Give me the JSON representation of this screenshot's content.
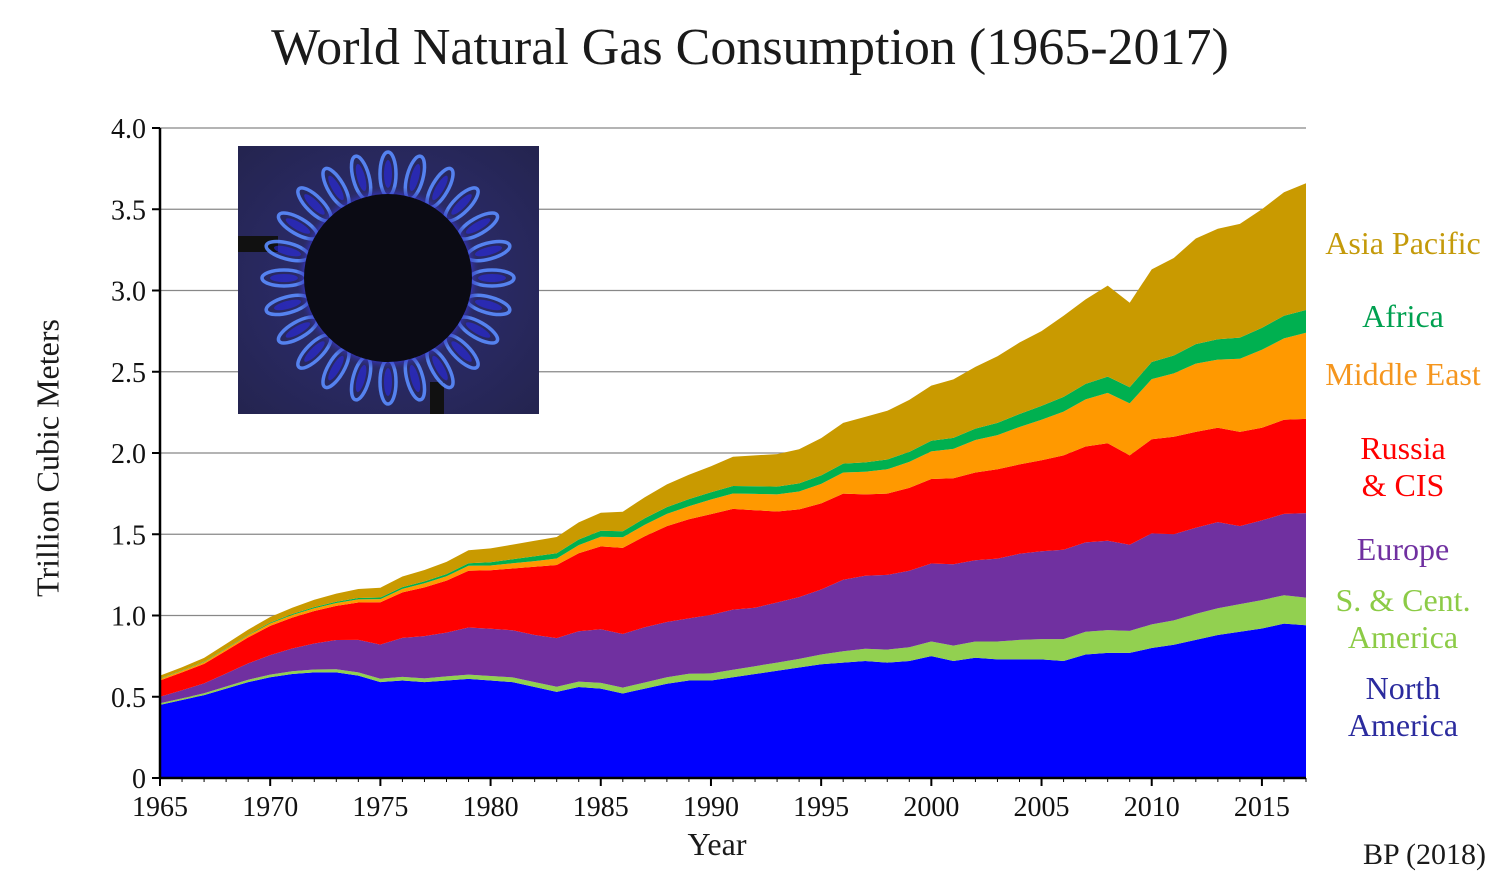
{
  "title": "World Natural Gas Consumption (1965-2017)",
  "source": "BP (2018)",
  "photo": {
    "icon": "gas-burner-flame-icon"
  },
  "chart_data": {
    "type": "area",
    "stacked": true,
    "title": "World Natural Gas Consumption (1965-2017)",
    "xlabel": "Year",
    "ylabel": "Trillion Cubic Meters",
    "xlim": [
      1965,
      2017
    ],
    "ylim": [
      0,
      4.0
    ],
    "grid": "horizontal",
    "x_ticks": [
      "1965",
      "1970",
      "1975",
      "1980",
      "1985",
      "1990",
      "1995",
      "2000",
      "2005",
      "2010",
      "2015"
    ],
    "y_ticks": [
      "0",
      "0.5",
      "1.0",
      "1.5",
      "2.0",
      "2.5",
      "3.0",
      "3.5",
      "4.0"
    ],
    "legend_position": "right, inline labels",
    "x": [
      1965,
      1966,
      1967,
      1968,
      1969,
      1970,
      1971,
      1972,
      1973,
      1974,
      1975,
      1976,
      1977,
      1978,
      1979,
      1980,
      1981,
      1982,
      1983,
      1984,
      1985,
      1986,
      1987,
      1988,
      1989,
      1990,
      1991,
      1992,
      1993,
      1994,
      1995,
      1996,
      1997,
      1998,
      1999,
      2000,
      2001,
      2002,
      2003,
      2004,
      2005,
      2006,
      2007,
      2008,
      2009,
      2010,
      2011,
      2012,
      2013,
      2014,
      2015,
      2016,
      2017
    ],
    "series": [
      {
        "name": "North America",
        "label_lines": [
          "North",
          "America"
        ],
        "color": "#0000ff",
        "label_color": "#2b2b9e",
        "values": [
          0.45,
          0.48,
          0.51,
          0.55,
          0.59,
          0.62,
          0.64,
          0.65,
          0.65,
          0.63,
          0.59,
          0.6,
          0.59,
          0.6,
          0.61,
          0.6,
          0.59,
          0.56,
          0.53,
          0.56,
          0.55,
          0.52,
          0.55,
          0.58,
          0.6,
          0.6,
          0.62,
          0.64,
          0.66,
          0.68,
          0.7,
          0.71,
          0.72,
          0.71,
          0.72,
          0.75,
          0.72,
          0.74,
          0.73,
          0.73,
          0.73,
          0.72,
          0.76,
          0.77,
          0.77,
          0.8,
          0.82,
          0.85,
          0.88,
          0.9,
          0.92,
          0.95,
          0.94
        ]
      },
      {
        "name": "S. & Cent. America",
        "label_lines": [
          "S. & Cent.",
          "America"
        ],
        "color": "#92d050",
        "label_color": "#8ccb46",
        "values": [
          0.01,
          0.01,
          0.012,
          0.013,
          0.015,
          0.016,
          0.017,
          0.018,
          0.019,
          0.02,
          0.021,
          0.022,
          0.023,
          0.025,
          0.026,
          0.028,
          0.029,
          0.03,
          0.031,
          0.033,
          0.035,
          0.036,
          0.038,
          0.04,
          0.042,
          0.044,
          0.046,
          0.048,
          0.05,
          0.053,
          0.06,
          0.07,
          0.075,
          0.08,
          0.085,
          0.09,
          0.095,
          0.1,
          0.11,
          0.12,
          0.125,
          0.135,
          0.14,
          0.14,
          0.135,
          0.145,
          0.15,
          0.16,
          0.165,
          0.17,
          0.175,
          0.175,
          0.17
        ]
      },
      {
        "name": "Europe",
        "label_lines": [
          "Europe"
        ],
        "color": "#7030a0",
        "label_color": "#7030a0",
        "values": [
          0.04,
          0.05,
          0.06,
          0.08,
          0.1,
          0.12,
          0.14,
          0.16,
          0.18,
          0.2,
          0.21,
          0.24,
          0.26,
          0.27,
          0.29,
          0.29,
          0.29,
          0.29,
          0.3,
          0.31,
          0.33,
          0.33,
          0.34,
          0.34,
          0.34,
          0.36,
          0.37,
          0.36,
          0.37,
          0.38,
          0.4,
          0.44,
          0.45,
          0.46,
          0.47,
          0.48,
          0.5,
          0.5,
          0.51,
          0.53,
          0.54,
          0.55,
          0.55,
          0.55,
          0.53,
          0.56,
          0.53,
          0.53,
          0.53,
          0.48,
          0.49,
          0.5,
          0.52
        ]
      },
      {
        "name": "Russia & CIS",
        "label_lines": [
          "Russia",
          "& CIS"
        ],
        "color": "#ff0000",
        "label_color": "#ff0000",
        "values": [
          0.1,
          0.11,
          0.12,
          0.14,
          0.16,
          0.18,
          0.19,
          0.2,
          0.21,
          0.23,
          0.26,
          0.28,
          0.3,
          0.32,
          0.35,
          0.36,
          0.38,
          0.42,
          0.45,
          0.48,
          0.51,
          0.53,
          0.56,
          0.59,
          0.61,
          0.62,
          0.62,
          0.6,
          0.56,
          0.54,
          0.53,
          0.53,
          0.5,
          0.5,
          0.51,
          0.52,
          0.53,
          0.54,
          0.55,
          0.55,
          0.56,
          0.58,
          0.59,
          0.6,
          0.55,
          0.58,
          0.6,
          0.59,
          0.58,
          0.58,
          0.57,
          0.58,
          0.58
        ]
      },
      {
        "name": "Middle East",
        "label_lines": [
          "Middle East"
        ],
        "color": "#ff9900",
        "label_color": "#f5961e",
        "values": [
          0.01,
          0.01,
          0.011,
          0.012,
          0.013,
          0.015,
          0.016,
          0.017,
          0.018,
          0.019,
          0.02,
          0.022,
          0.025,
          0.027,
          0.03,
          0.03,
          0.032,
          0.035,
          0.04,
          0.05,
          0.06,
          0.065,
          0.07,
          0.075,
          0.08,
          0.09,
          0.095,
          0.1,
          0.105,
          0.11,
          0.12,
          0.13,
          0.14,
          0.15,
          0.16,
          0.17,
          0.18,
          0.2,
          0.21,
          0.23,
          0.25,
          0.27,
          0.29,
          0.31,
          0.32,
          0.37,
          0.39,
          0.42,
          0.42,
          0.45,
          0.48,
          0.5,
          0.53
        ]
      },
      {
        "name": "Africa",
        "label_lines": [
          "Africa"
        ],
        "color": "#00b050",
        "label_color": "#00a050",
        "values": [
          0.002,
          0.002,
          0.003,
          0.003,
          0.004,
          0.005,
          0.006,
          0.007,
          0.008,
          0.009,
          0.01,
          0.011,
          0.012,
          0.013,
          0.015,
          0.02,
          0.025,
          0.03,
          0.032,
          0.035,
          0.037,
          0.038,
          0.04,
          0.042,
          0.044,
          0.045,
          0.046,
          0.047,
          0.048,
          0.05,
          0.052,
          0.055,
          0.057,
          0.06,
          0.062,
          0.065,
          0.068,
          0.07,
          0.075,
          0.08,
          0.085,
          0.09,
          0.095,
          0.1,
          0.1,
          0.105,
          0.11,
          0.12,
          0.125,
          0.13,
          0.135,
          0.14,
          0.14
        ]
      },
      {
        "name": "Asia Pacific",
        "label_lines": [
          "Asia Pacific"
        ],
        "color": "#c99a00",
        "label_color": "#c49a0a",
        "values": [
          0.018,
          0.02,
          0.023,
          0.027,
          0.031,
          0.035,
          0.039,
          0.045,
          0.05,
          0.055,
          0.06,
          0.065,
          0.07,
          0.075,
          0.08,
          0.085,
          0.09,
          0.095,
          0.1,
          0.105,
          0.11,
          0.12,
          0.13,
          0.14,
          0.15,
          0.16,
          0.18,
          0.19,
          0.2,
          0.21,
          0.23,
          0.25,
          0.28,
          0.3,
          0.32,
          0.34,
          0.36,
          0.38,
          0.41,
          0.44,
          0.46,
          0.5,
          0.52,
          0.56,
          0.52,
          0.57,
          0.6,
          0.65,
          0.68,
          0.7,
          0.73,
          0.76,
          0.78
        ]
      }
    ]
  }
}
